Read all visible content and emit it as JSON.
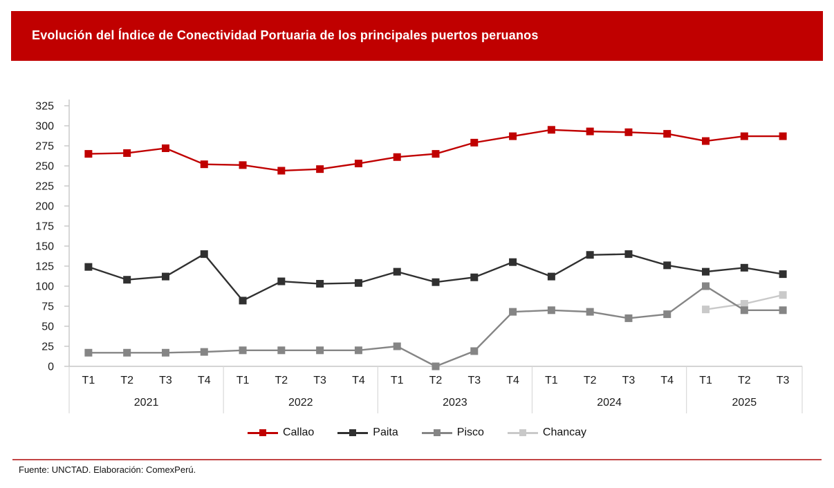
{
  "title": "Evolución del Índice de Conectividad Portuaria de los principales puertos peruanos",
  "footer": {
    "source": "Fuente: UNCTAD. Elaboración: ComexPerú."
  },
  "colors": {
    "title_bg": "#C00000",
    "title_text": "#FFFFFF",
    "footer_rule": "#C24444",
    "axis_line": "#C6C6C6",
    "year_separator": "#D9D9D9",
    "tick_label": "#1a1a1a"
  },
  "chart_data": {
    "type": "line",
    "title": "Evolución del Índice de Conectividad Portuaria de los principales puertos peruanos",
    "xlabel": "",
    "ylabel": "",
    "ylim": [
      0,
      325
    ],
    "ytick_step": 25,
    "grid": false,
    "legend_position": "bottom",
    "marker": "square",
    "x_groups": [
      {
        "year": "2021",
        "quarters": [
          "T1",
          "T2",
          "T3",
          "T4"
        ]
      },
      {
        "year": "2022",
        "quarters": [
          "T1",
          "T2",
          "T3",
          "T4"
        ]
      },
      {
        "year": "2023",
        "quarters": [
          "T1",
          "T2",
          "T3",
          "T4"
        ]
      },
      {
        "year": "2024",
        "quarters": [
          "T1",
          "T2",
          "T3",
          "T4"
        ]
      },
      {
        "year": "2025",
        "quarters": [
          "T1",
          "T2",
          "T3"
        ]
      }
    ],
    "series": [
      {
        "name": "Callao",
        "color": "#C00000",
        "values": [
          265,
          266,
          272,
          252,
          251,
          244,
          246,
          253,
          261,
          265,
          279,
          287,
          295,
          293,
          292,
          290,
          281,
          287,
          287
        ]
      },
      {
        "name": "Paita",
        "color": "#303030",
        "values": [
          124,
          108,
          112,
          140,
          82,
          106,
          103,
          104,
          118,
          105,
          111,
          130,
          112,
          139,
          140,
          126,
          118,
          123,
          115
        ]
      },
      {
        "name": "Pisco",
        "color": "#858585",
        "values": [
          17,
          17,
          17,
          18,
          20,
          20,
          20,
          20,
          25,
          0,
          19,
          68,
          70,
          68,
          60,
          65,
          100,
          70,
          70
        ]
      },
      {
        "name": "Chancay",
        "color": "#C9C9C9",
        "values": [
          null,
          null,
          null,
          null,
          null,
          null,
          null,
          null,
          null,
          null,
          null,
          null,
          null,
          null,
          null,
          null,
          71,
          78,
          89
        ]
      }
    ]
  }
}
